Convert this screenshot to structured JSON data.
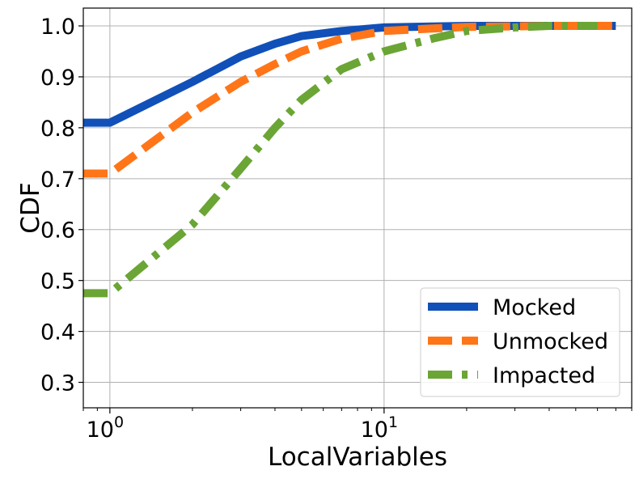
{
  "chart_data": {
    "type": "line",
    "xscale": "log",
    "xlabel": "LocalVariables",
    "ylabel": "CDF",
    "xlim": [
      0.8,
      80
    ],
    "ylim": [
      0.25,
      1.035
    ],
    "grid": true,
    "legend_position": "bottom-right",
    "x_ticks": [
      {
        "value": 1,
        "base": "10",
        "exp": "0"
      },
      {
        "value": 10,
        "base": "10",
        "exp": "1"
      }
    ],
    "y_ticks": [
      "0.3",
      "0.4",
      "0.5",
      "0.6",
      "0.7",
      "0.8",
      "0.9",
      "1.0"
    ],
    "series": [
      {
        "name": "Mocked",
        "color": "#1050b8",
        "style": "solid",
        "points": [
          [
            0.8,
            0.81
          ],
          [
            1,
            0.81
          ],
          [
            2,
            0.89
          ],
          [
            3,
            0.94
          ],
          [
            4,
            0.965
          ],
          [
            5,
            0.98
          ],
          [
            7,
            0.99
          ],
          [
            10,
            0.997
          ],
          [
            15,
            0.999
          ],
          [
            20,
            1.0
          ],
          [
            40,
            1.0
          ],
          [
            70,
            1.0
          ]
        ]
      },
      {
        "name": "Unmocked",
        "color": "#ff7518",
        "style": "dashed",
        "points": [
          [
            0.8,
            0.71
          ],
          [
            1,
            0.71
          ],
          [
            2,
            0.83
          ],
          [
            3,
            0.89
          ],
          [
            4,
            0.925
          ],
          [
            5,
            0.95
          ],
          [
            7,
            0.975
          ],
          [
            10,
            0.99
          ],
          [
            15,
            0.995
          ],
          [
            20,
            0.998
          ],
          [
            40,
            1.0
          ],
          [
            70,
            1.0
          ]
        ]
      },
      {
        "name": "Impacted",
        "color": "#6aa535",
        "style": "dashdot",
        "points": [
          [
            0.8,
            0.475
          ],
          [
            1,
            0.475
          ],
          [
            2,
            0.61
          ],
          [
            3,
            0.72
          ],
          [
            4,
            0.8
          ],
          [
            5,
            0.855
          ],
          [
            7,
            0.915
          ],
          [
            10,
            0.95
          ],
          [
            15,
            0.975
          ],
          [
            20,
            0.99
          ],
          [
            30,
            0.997
          ],
          [
            40,
            1.0
          ],
          [
            60,
            1.0
          ]
        ]
      }
    ]
  }
}
